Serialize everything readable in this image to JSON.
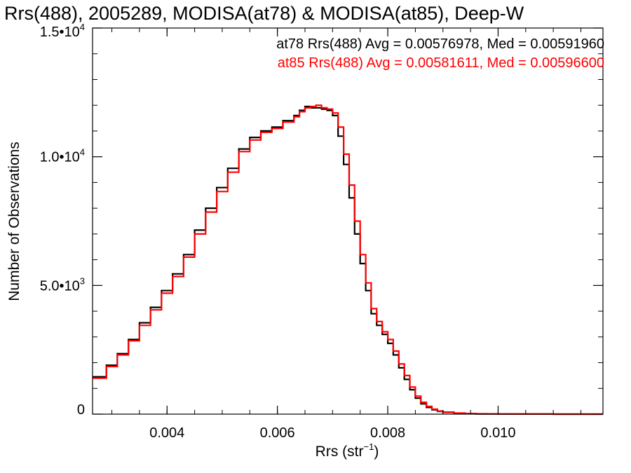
{
  "chart_data": {
    "type": "line",
    "title": "Rrs(488), 2005289, MODISA(at78) & MODISA(at85), Deep-W",
    "xlabel": {
      "text": "Rrs (str",
      "sup": "−1",
      "close": ")"
    },
    "ylabel": "Number of Observations",
    "xlim": [
      0.00265,
      0.0119
    ],
    "ylim": [
      0,
      15000
    ],
    "x_ticks": [
      {
        "value": 0.004,
        "label": "0.004"
      },
      {
        "value": 0.006,
        "label": "0.006"
      },
      {
        "value": 0.008,
        "label": "0.008"
      },
      {
        "value": 0.01,
        "label": "0.010"
      }
    ],
    "y_ticks": [
      {
        "value": 0,
        "label": "0",
        "sup": ""
      },
      {
        "value": 5000,
        "label": "5.0•10",
        "sup": "3"
      },
      {
        "value": 10000,
        "label": "1.0•10",
        "sup": "4"
      },
      {
        "value": 15000,
        "label": "1.5•10",
        "sup": "4"
      }
    ],
    "series": [
      {
        "name": "at78",
        "color": "#000000",
        "annotation": "at78 Rrs(488) Avg = 0.00576978, Med = 0.00591960",
        "x": [
          0.00265,
          0.0029,
          0.0031,
          0.0033,
          0.0035,
          0.0037,
          0.0039,
          0.0041,
          0.0043,
          0.0045,
          0.0047,
          0.0049,
          0.0051,
          0.0053,
          0.0055,
          0.0057,
          0.0059,
          0.0061,
          0.0063,
          0.0064,
          0.0065,
          0.0066,
          0.0067,
          0.0068,
          0.0069,
          0.007,
          0.0071,
          0.0072,
          0.0073,
          0.0074,
          0.0075,
          0.0076,
          0.0077,
          0.0078,
          0.0079,
          0.008,
          0.0081,
          0.0082,
          0.0083,
          0.0084,
          0.0085,
          0.0086,
          0.0087,
          0.0088,
          0.0089,
          0.009,
          0.0092,
          0.0094,
          0.0096,
          0.0098,
          0.01,
          0.0103,
          0.0106,
          0.011,
          0.0114,
          0.0119
        ],
        "y": [
          1450,
          1900,
          2350,
          2900,
          3550,
          4150,
          4800,
          5450,
          6200,
          7150,
          8000,
          8800,
          9550,
          10300,
          10750,
          11000,
          11150,
          11400,
          11600,
          11800,
          11950,
          11900,
          11900,
          11850,
          11800,
          11600,
          10800,
          9700,
          8400,
          7000,
          5850,
          4800,
          3900,
          3450,
          3100,
          2750,
          2300,
          1800,
          1350,
          950,
          620,
          400,
          260,
          170,
          110,
          70,
          35,
          20,
          12,
          8,
          5,
          3,
          2,
          1,
          1,
          0
        ]
      },
      {
        "name": "at85",
        "color": "#ff0000",
        "annotation": "at85 Rrs(488) Avg = 0.00581611, Med = 0.00596600",
        "x": [
          0.00265,
          0.0029,
          0.0031,
          0.0033,
          0.0035,
          0.0037,
          0.0039,
          0.0041,
          0.0043,
          0.0045,
          0.0047,
          0.0049,
          0.0051,
          0.0053,
          0.0055,
          0.0057,
          0.0059,
          0.0061,
          0.0063,
          0.0064,
          0.0065,
          0.0066,
          0.0067,
          0.0068,
          0.0069,
          0.007,
          0.0071,
          0.0072,
          0.0073,
          0.0074,
          0.0075,
          0.0076,
          0.0077,
          0.0078,
          0.0079,
          0.008,
          0.0081,
          0.0082,
          0.0083,
          0.0084,
          0.0085,
          0.0086,
          0.0087,
          0.0088,
          0.0089,
          0.009,
          0.0092,
          0.0094,
          0.0096,
          0.0098,
          0.01,
          0.0103,
          0.0106,
          0.011,
          0.0114,
          0.0119
        ],
        "y": [
          1400,
          1850,
          2300,
          2850,
          3450,
          4050,
          4700,
          5350,
          6100,
          7000,
          7850,
          8650,
          9400,
          10200,
          10650,
          10950,
          11100,
          11350,
          11550,
          11750,
          11900,
          11950,
          12000,
          11900,
          11850,
          11700,
          11150,
          10100,
          8900,
          7500,
          6200,
          5100,
          4100,
          3600,
          3200,
          2900,
          2450,
          1950,
          1500,
          1050,
          700,
          460,
          300,
          190,
          120,
          80,
          40,
          22,
          13,
          9,
          6,
          4,
          2,
          1,
          1,
          0
        ]
      }
    ]
  }
}
